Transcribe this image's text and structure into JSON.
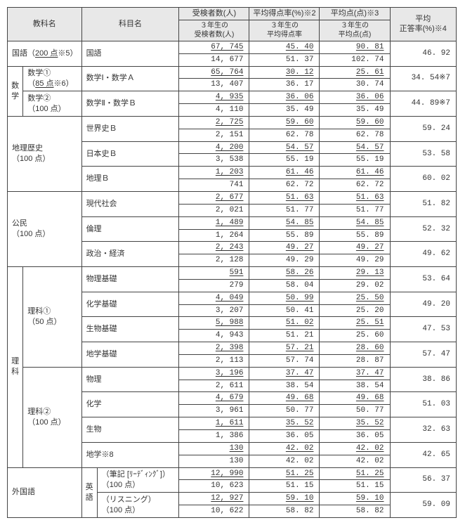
{
  "header": {
    "col1": "教科名",
    "col2": "科目名",
    "col3_top": "受検者数(人)",
    "col3_sub": "３年生の\n受検者数(人)",
    "col4_top": "平均得点率(%)※2",
    "col4_sub": "３年生の\n平均得点率",
    "col5_top": "平均点(点)※3",
    "col5_sub": "３年生の\n平均点(点)",
    "col6": "平均\n正答率(%)※4"
  },
  "groups": [
    {
      "kyouka": "国語（200 点※5）",
      "subjects": [
        {
          "name": "国語",
          "r1": [
            "67, 745",
            "45. 40",
            "90. 81"
          ],
          "r2": [
            "14, 677",
            "51. 37",
            "102. 74"
          ],
          "avg": "46. 92"
        }
      ]
    },
    {
      "kyouka": "数\n学",
      "sublabels": [
        {
          "title": "数学①\n（85 点※6）",
          "subject": "数学Ⅰ・数学Ａ",
          "r1": [
            "65, 764",
            "30. 12",
            "25. 61"
          ],
          "r2": [
            "13, 407",
            "36. 17",
            "30. 74"
          ],
          "avg": "34. 54※7"
        },
        {
          "title": "数学②\n（100 点）",
          "subject": "数学Ⅱ・数学Ｂ",
          "r1": [
            "4, 935",
            "36. 06",
            "36. 06"
          ],
          "r2": [
            "4, 110",
            "35. 49",
            "35. 49"
          ],
          "avg": "44. 89※7"
        }
      ]
    },
    {
      "kyouka": "地理歴史\n（100 点）",
      "subjects": [
        {
          "name": "世界史Ｂ",
          "r1": [
            "2, 725",
            "59. 60",
            "59. 60"
          ],
          "r2": [
            "2, 151",
            "62. 78",
            "62. 78"
          ],
          "avg": "59. 24"
        },
        {
          "name": "日本史Ｂ",
          "r1": [
            "4, 200",
            "54. 57",
            "54. 57"
          ],
          "r2": [
            "3, 538",
            "55. 19",
            "55. 19"
          ],
          "avg": "53. 58"
        },
        {
          "name": "地理Ｂ",
          "r1": [
            "1, 203",
            "61. 46",
            "61. 46"
          ],
          "r2": [
            "741",
            "62. 72",
            "62. 72"
          ],
          "avg": "60. 02"
        }
      ]
    },
    {
      "kyouka": "公民\n（100 点）",
      "subjects": [
        {
          "name": "現代社会",
          "r1": [
            "2, 677",
            "51. 63",
            "51. 63"
          ],
          "r2": [
            "2, 021",
            "51. 77",
            "51. 77"
          ],
          "avg": "51. 82"
        },
        {
          "name": "倫理",
          "r1": [
            "1, 489",
            "54. 85",
            "54. 85"
          ],
          "r2": [
            "1, 264",
            "55. 89",
            "55. 89"
          ],
          "avg": "52. 32"
        },
        {
          "name": "政治・経済",
          "r1": [
            "2, 243",
            "49. 27",
            "49. 27"
          ],
          "r2": [
            "2, 128",
            "49. 29",
            "49. 29"
          ],
          "avg": "49. 62"
        }
      ]
    },
    {
      "kyouka": "理\n科",
      "sublabels2": [
        {
          "title": "理科①\n（50 点）",
          "subjects": [
            {
              "name": "物理基礎",
              "r1": [
                "591",
                "58. 26",
                "29. 13"
              ],
              "r2": [
                "279",
                "58. 04",
                "29. 02"
              ],
              "avg": "53. 64"
            },
            {
              "name": "化学基礎",
              "r1": [
                "4, 049",
                "50. 99",
                "25. 50"
              ],
              "r2": [
                "3, 207",
                "50. 41",
                "25. 20"
              ],
              "avg": "49. 20"
            },
            {
              "name": "生物基礎",
              "r1": [
                "5, 988",
                "51. 02",
                "25. 51"
              ],
              "r2": [
                "4, 943",
                "51. 21",
                "25. 60"
              ],
              "avg": "47. 53"
            },
            {
              "name": "地学基礎",
              "r1": [
                "2, 398",
                "57. 21",
                "28. 60"
              ],
              "r2": [
                "2, 113",
                "57. 74",
                "28. 87"
              ],
              "avg": "57. 47"
            }
          ]
        },
        {
          "title": "理科②\n（100 点）",
          "subjects": [
            {
              "name": "物理",
              "r1": [
                "3, 196",
                "37. 47",
                "37. 47"
              ],
              "r2": [
                "2, 611",
                "38. 54",
                "38. 54"
              ],
              "avg": "38. 86"
            },
            {
              "name": "化学",
              "r1": [
                "4, 679",
                "49. 68",
                "49. 68"
              ],
              "r2": [
                "3, 961",
                "50. 77",
                "50. 77"
              ],
              "avg": "51. 03"
            },
            {
              "name": "生物",
              "r1": [
                "1, 611",
                "35. 52",
                "35. 52"
              ],
              "r2": [
                "1, 386",
                "36. 05",
                "36. 05"
              ],
              "avg": "32. 63"
            },
            {
              "name": "地学※8",
              "r1": [
                "130",
                "42. 02",
                "42. 02"
              ],
              "r2": [
                "130",
                "42. 02",
                "42. 02"
              ],
              "avg": "42. 65"
            }
          ]
        }
      ]
    },
    {
      "kyouka": "外国語",
      "english": {
        "label": "英\n語",
        "rows": [
          {
            "name": "（筆記 [ﾘｰﾃﾞｨﾝｸﾞ]）（100 点）",
            "r1": [
              "12, 990",
              "51. 25",
              "51. 25"
            ],
            "r2": [
              "10, 623",
              "51. 15",
              "51. 15"
            ],
            "avg": "56. 37"
          },
          {
            "name": "（リスニング）\n（100 点）",
            "r1": [
              "12, 927",
              "59. 10",
              "59. 10"
            ],
            "r2": [
              "10, 622",
              "58. 82",
              "58. 82"
            ],
            "avg": "59. 09"
          }
        ]
      }
    }
  ]
}
